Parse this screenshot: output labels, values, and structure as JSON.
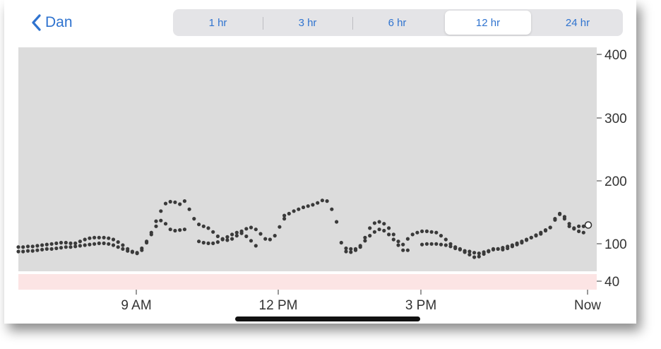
{
  "nav": {
    "back_label": "Dan"
  },
  "range_tabs": [
    {
      "label": "1 hr",
      "selected": false
    },
    {
      "label": "3 hr",
      "selected": false
    },
    {
      "label": "6 hr",
      "selected": false
    },
    {
      "label": "12 hr",
      "selected": true
    },
    {
      "label": "24 hr",
      "selected": false
    }
  ],
  "colors": {
    "accent": "#2f73cf",
    "plot_background": "#dcdcdc",
    "low_band": "#fce4e4",
    "point": "#3a3a3a"
  },
  "chart_data": {
    "type": "scatter",
    "x_ticks": [
      "9 AM",
      "12 PM",
      "3 PM",
      "Now"
    ],
    "y_ticks": [
      "400",
      "300",
      "200",
      "100",
      "40"
    ],
    "ylim": [
      40,
      400
    ],
    "low_band_max": 40,
    "xlim_hours": [
      6.5,
      18.5
    ],
    "x_axis_note": "time of day in hours",
    "current_value_marker": {
      "x": 18.5,
      "y": 130
    },
    "series": [
      {
        "points": [
          [
            6.5,
            88
          ],
          [
            6.6,
            88
          ],
          [
            6.7,
            89
          ],
          [
            6.8,
            89
          ],
          [
            6.9,
            90
          ],
          [
            7.0,
            91
          ],
          [
            7.1,
            92
          ],
          [
            7.2,
            92
          ],
          [
            7.3,
            93
          ],
          [
            7.4,
            94
          ],
          [
            7.5,
            95
          ],
          [
            7.6,
            95
          ],
          [
            7.7,
            96
          ],
          [
            7.8,
            97
          ],
          [
            7.9,
            98
          ],
          [
            8.0,
            99
          ],
          [
            8.1,
            100
          ],
          [
            8.2,
            101
          ],
          [
            8.3,
            101
          ],
          [
            8.4,
            100
          ],
          [
            8.5,
            98
          ],
          [
            8.6,
            95
          ],
          [
            8.7,
            92
          ],
          [
            8.8,
            89
          ],
          [
            8.9,
            87
          ],
          [
            9.0,
            86
          ],
          [
            9.1,
            90
          ],
          [
            9.2,
            102
          ],
          [
            9.3,
            115
          ],
          [
            9.4,
            128
          ],
          [
            9.5,
            137
          ],
          [
            9.6,
            132
          ],
          [
            9.7,
            123
          ],
          [
            9.8,
            121
          ],
          [
            9.9,
            122
          ],
          [
            10.0,
            123
          ],
          [
            10.3,
            104
          ],
          [
            10.4,
            102
          ],
          [
            10.5,
            101
          ],
          [
            10.6,
            101
          ],
          [
            10.7,
            103
          ],
          [
            10.8,
            107
          ],
          [
            10.9,
            111
          ],
          [
            11.0,
            115
          ],
          [
            11.1,
            118
          ],
          [
            11.2,
            117
          ],
          [
            11.3,
            112
          ],
          [
            11.4,
            105
          ],
          [
            11.5,
            97
          ],
          [
            12.1,
            145
          ],
          [
            12.2,
            148
          ],
          [
            12.3,
            152
          ],
          [
            12.4,
            155
          ],
          [
            12.5,
            158
          ],
          [
            12.6,
            160
          ],
          [
            12.7,
            162
          ],
          [
            12.8,
            165
          ],
          [
            12.9,
            169
          ],
          [
            13.0,
            168
          ],
          [
            13.1,
            155
          ],
          [
            13.2,
            135
          ],
          [
            13.3,
            102
          ],
          [
            13.4,
            93
          ],
          [
            13.5,
            92
          ],
          [
            13.6,
            92
          ],
          [
            13.7,
            95
          ],
          [
            13.8,
            105
          ],
          [
            13.9,
            113
          ],
          [
            14.0,
            119
          ],
          [
            14.1,
            123
          ],
          [
            14.2,
            121
          ],
          [
            14.3,
            115
          ],
          [
            14.4,
            107
          ],
          [
            14.5,
            98
          ],
          [
            14.6,
            90
          ],
          [
            14.7,
            90
          ],
          [
            15.0,
            99
          ],
          [
            15.1,
            100
          ],
          [
            15.2,
            100
          ],
          [
            15.3,
            100
          ],
          [
            15.4,
            99
          ],
          [
            15.5,
            98
          ],
          [
            15.6,
            96
          ],
          [
            15.7,
            93
          ],
          [
            15.8,
            91
          ],
          [
            15.9,
            89
          ],
          [
            16.0,
            88
          ],
          [
            16.1,
            86
          ],
          [
            16.2,
            85
          ],
          [
            16.3,
            87
          ],
          [
            16.4,
            89
          ],
          [
            16.5,
            91
          ],
          [
            16.6,
            92
          ],
          [
            16.7,
            94
          ],
          [
            16.8,
            96
          ],
          [
            16.9,
            98
          ],
          [
            17.0,
            101
          ],
          [
            17.1,
            104
          ],
          [
            17.2,
            107
          ],
          [
            17.3,
            110
          ],
          [
            17.4,
            114
          ],
          [
            17.5,
            118
          ],
          [
            17.6,
            122
          ],
          [
            17.7,
            126
          ],
          [
            17.8,
            138
          ],
          [
            17.9,
            147
          ],
          [
            18.0,
            143
          ],
          [
            18.1,
            132
          ],
          [
            18.2,
            124
          ],
          [
            18.3,
            120
          ],
          [
            18.4,
            118
          ]
        ]
      },
      {
        "points": [
          [
            6.5,
            95
          ],
          [
            6.6,
            95
          ],
          [
            6.7,
            96
          ],
          [
            6.8,
            96
          ],
          [
            6.9,
            97
          ],
          [
            7.0,
            98
          ],
          [
            7.1,
            99
          ],
          [
            7.2,
            100
          ],
          [
            7.3,
            101
          ],
          [
            7.4,
            102
          ],
          [
            7.5,
            102
          ],
          [
            7.6,
            101
          ],
          [
            7.7,
            101
          ],
          [
            7.8,
            104
          ],
          [
            7.9,
            107
          ],
          [
            8.0,
            109
          ],
          [
            8.1,
            110
          ],
          [
            8.2,
            110
          ],
          [
            8.3,
            110
          ],
          [
            8.4,
            109
          ],
          [
            8.5,
            107
          ],
          [
            8.6,
            103
          ],
          [
            8.7,
            98
          ],
          [
            8.8,
            92
          ],
          [
            8.9,
            88
          ],
          [
            9.0,
            85
          ],
          [
            9.1,
            93
          ],
          [
            9.2,
            104
          ],
          [
            9.3,
            118
          ],
          [
            9.4,
            136
          ],
          [
            9.5,
            152
          ],
          [
            9.6,
            164
          ],
          [
            9.7,
            167
          ],
          [
            9.8,
            166
          ],
          [
            9.9,
            163
          ],
          [
            10.0,
            168
          ],
          [
            10.1,
            155
          ],
          [
            10.2,
            140
          ],
          [
            10.3,
            131
          ],
          [
            10.4,
            128
          ],
          [
            10.5,
            125
          ],
          [
            10.6,
            119
          ],
          [
            10.7,
            112
          ],
          [
            10.8,
            108
          ],
          [
            10.9,
            106
          ],
          [
            11.0,
            108
          ],
          [
            11.1,
            113
          ],
          [
            11.2,
            120
          ],
          [
            11.3,
            124
          ],
          [
            11.4,
            126
          ],
          [
            11.5,
            123
          ],
          [
            11.6,
            116
          ],
          [
            11.7,
            108
          ],
          [
            11.8,
            107
          ],
          [
            11.9,
            113
          ],
          [
            12.0,
            127
          ],
          [
            12.1,
            140
          ],
          [
            13.4,
            88
          ],
          [
            13.5,
            87
          ],
          [
            13.6,
            90
          ],
          [
            13.7,
            97
          ],
          [
            13.8,
            110
          ],
          [
            13.9,
            125
          ],
          [
            14.0,
            133
          ],
          [
            14.1,
            135
          ],
          [
            14.2,
            132
          ],
          [
            14.3,
            125
          ],
          [
            14.4,
            115
          ],
          [
            14.5,
            104
          ],
          [
            14.6,
            99
          ],
          [
            14.7,
            108
          ],
          [
            14.8,
            115
          ],
          [
            14.9,
            118
          ],
          [
            15.0,
            120
          ],
          [
            15.1,
            120
          ],
          [
            15.2,
            119
          ],
          [
            15.3,
            118
          ],
          [
            15.4,
            113
          ],
          [
            15.5,
            107
          ],
          [
            15.6,
            100
          ],
          [
            15.7,
            95
          ],
          [
            15.8,
            92
          ],
          [
            15.9,
            87
          ],
          [
            16.0,
            83
          ],
          [
            16.1,
            79
          ],
          [
            16.2,
            80
          ],
          [
            16.3,
            84
          ],
          [
            16.4,
            88
          ],
          [
            16.5,
            92
          ],
          [
            16.6,
            92
          ],
          [
            16.7,
            91
          ],
          [
            16.8,
            93
          ],
          [
            16.9,
            96
          ],
          [
            17.0,
            99
          ],
          [
            17.1,
            102
          ],
          [
            17.2,
            106
          ],
          [
            17.3,
            110
          ],
          [
            17.4,
            113
          ],
          [
            17.5,
            116
          ],
          [
            17.6,
            121
          ],
          [
            17.7,
            126
          ],
          [
            17.8,
            140
          ],
          [
            17.9,
            148
          ],
          [
            18.0,
            140
          ],
          [
            18.1,
            128
          ],
          [
            18.2,
            125
          ],
          [
            18.3,
            128
          ],
          [
            18.4,
            128
          ]
        ]
      }
    ]
  }
}
